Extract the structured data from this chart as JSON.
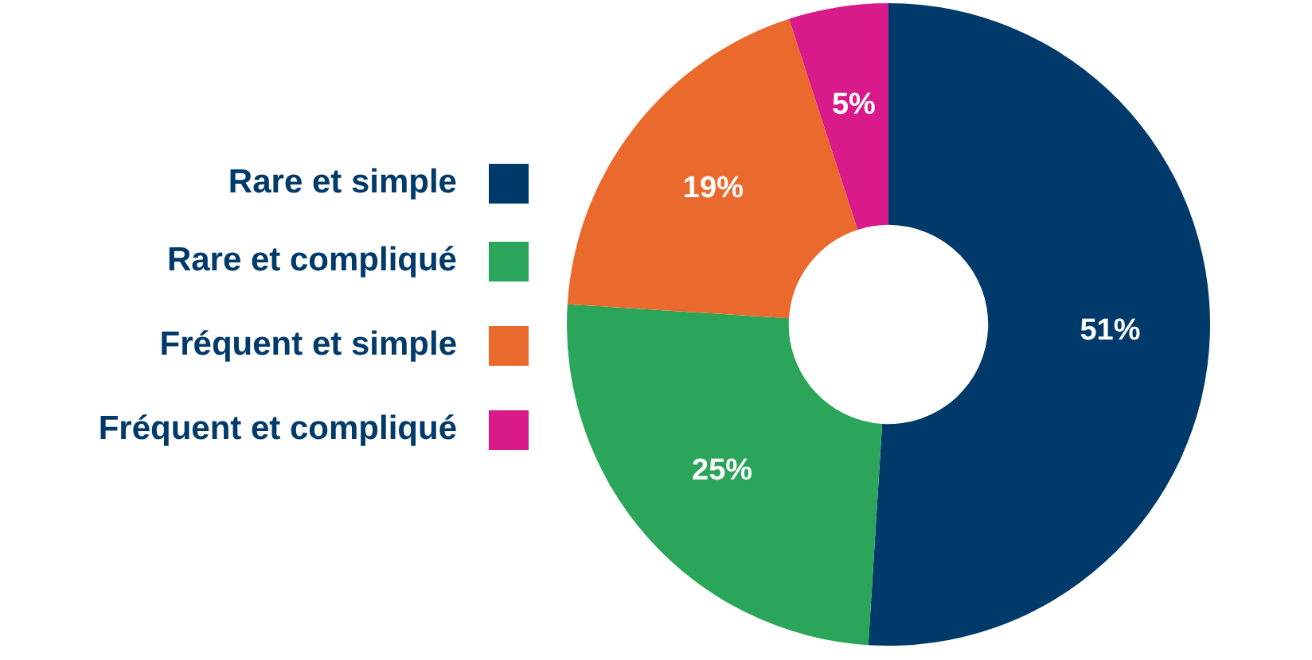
{
  "chart_data": {
    "type": "donut",
    "categories": [
      "Rare et simple",
      "Rare et compliqué",
      "Fréquent et simple",
      "Fréquent et compliqué"
    ],
    "values": [
      51,
      25,
      19,
      5
    ],
    "value_labels": [
      "51%",
      "25%",
      "19%",
      "5%"
    ],
    "colors": [
      "#003a6b",
      "#2ba55a",
      "#ea6a2e",
      "#d91a8a"
    ],
    "legend": "left"
  }
}
